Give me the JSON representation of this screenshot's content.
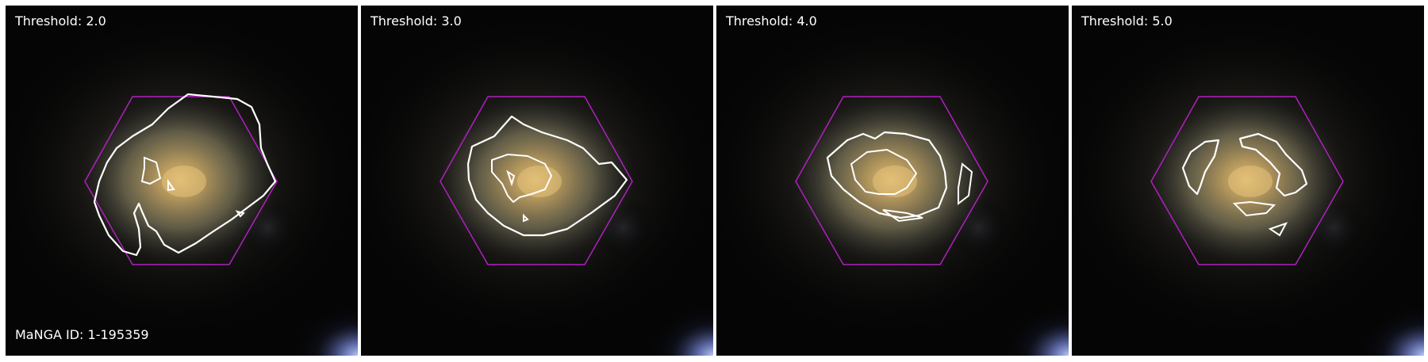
{
  "panels": [
    {
      "title": "Threshold: 2.0"
    },
    {
      "title": "Threshold: 3.0"
    },
    {
      "title": "Threshold: 4.0"
    },
    {
      "title": "Threshold: 5.0"
    }
  ],
  "manga_id": "MaNGA ID: 1-195359",
  "colors": {
    "contour": "#ffffff",
    "hexagon": "#b020c0",
    "background": "#050505",
    "galaxy_core": "#c8a56a"
  }
}
